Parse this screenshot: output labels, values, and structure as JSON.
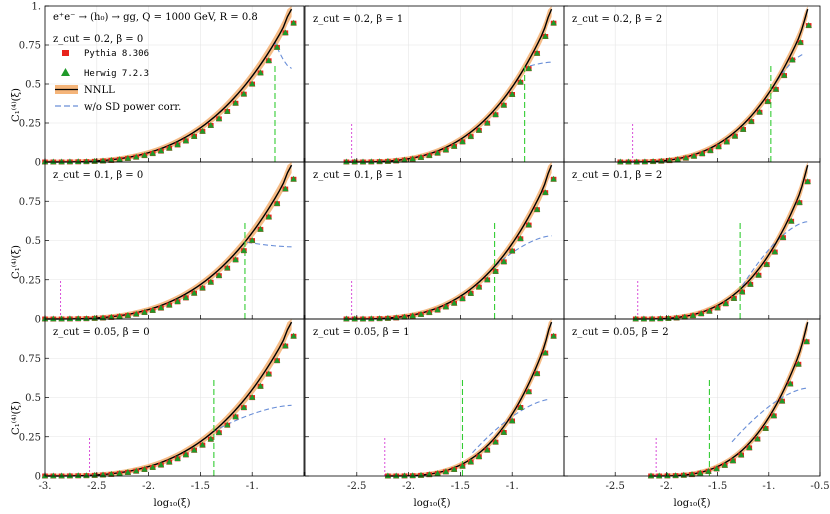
{
  "chart_data": {
    "type": "line",
    "title": "e⁺e⁻ → (h₀) → gg, Q = 1000 GeV, R = 0.8",
    "xlabel": "log₁₀(ξ)",
    "ylabel": "C₁⁽⁴⁾(ξ)",
    "xlim": [
      -3.0,
      -0.5
    ],
    "ylim": [
      0,
      1.0
    ],
    "x_ticks": [
      -3.0,
      -2.5,
      -2.0,
      -1.5,
      -1.0,
      -0.5
    ],
    "x_tick_labels": [
      "-3.",
      "-2.5",
      "-2.",
      "-1.5",
      "-1.",
      "-0.5"
    ],
    "y_ticks": [
      0,
      0.25,
      0.5,
      0.75,
      1.0
    ],
    "y_tick_labels": [
      "0",
      "0.25",
      "0.5",
      "0.75",
      "1."
    ],
    "legend": {
      "pythia": "Pythia 8.306",
      "herwig": "Herwig 7.2.3",
      "nnll": "NNLL",
      "nosd": "w/o SD power corr."
    },
    "colors": {
      "pythia": "#e8231c",
      "herwig": "#1f9a2a",
      "nnll_line": "#000000",
      "nnll_band": "#f5b57a",
      "nosd": "#6a8fd8",
      "green_marker": "#33cc33",
      "magenta_marker": "#d94fd9"
    },
    "panels": [
      {
        "zcut": "0.2",
        "beta": "0",
        "label": "z_cut = 0.2, β = 0",
        "green_x": -0.78,
        "magenta_x": null,
        "x_start": -3.0,
        "curve_end": 0.96,
        "nosd_end": 0.6
      },
      {
        "zcut": "0.2",
        "beta": "1",
        "label": "z_cut = 0.2, β = 1",
        "green_x": -0.88,
        "magenta_x": -2.55,
        "x_start": -2.6,
        "curve_end": 0.95,
        "nosd_end": 0.64
      },
      {
        "zcut": "0.2",
        "beta": "2",
        "label": "z_cut = 0.2, β = 2",
        "green_x": -0.98,
        "magenta_x": -2.33,
        "x_start": -2.45,
        "curve_end": 0.93,
        "nosd_end": 0.7
      },
      {
        "zcut": "0.1",
        "beta": "0",
        "label": "z_cut = 0.1, β = 0",
        "green_x": -1.07,
        "magenta_x": -2.85,
        "x_start": -3.0,
        "curve_end": 0.96,
        "nosd_end": 0.46
      },
      {
        "zcut": "0.1",
        "beta": "1",
        "label": "z_cut = 0.1, β = 1",
        "green_x": -1.17,
        "magenta_x": -2.55,
        "x_start": -2.6,
        "curve_end": 0.95,
        "nosd_end": 0.53
      },
      {
        "zcut": "0.1",
        "beta": "2",
        "label": "z_cut = 0.1, β = 2",
        "green_x": -1.28,
        "magenta_x": -2.28,
        "x_start": -2.3,
        "curve_end": 0.93,
        "nosd_end": 0.62
      },
      {
        "zcut": "0.05",
        "beta": "0",
        "label": "z_cut = 0.05, β = 0",
        "green_x": -1.37,
        "magenta_x": -2.57,
        "x_start": -3.0,
        "curve_end": 0.96,
        "nosd_end": 0.45
      },
      {
        "zcut": "0.05",
        "beta": "1",
        "label": "z_cut = 0.05, β = 1",
        "green_x": -1.48,
        "magenta_x": -2.23,
        "x_start": -2.2,
        "curve_end": 0.95,
        "nosd_end": 0.49
      },
      {
        "zcut": "0.05",
        "beta": "2",
        "label": "z_cut = 0.05, β = 2",
        "green_x": -1.58,
        "magenta_x": -2.1,
        "x_start": -2.15,
        "curve_end": 0.93,
        "nosd_end": 0.56
      }
    ]
  }
}
